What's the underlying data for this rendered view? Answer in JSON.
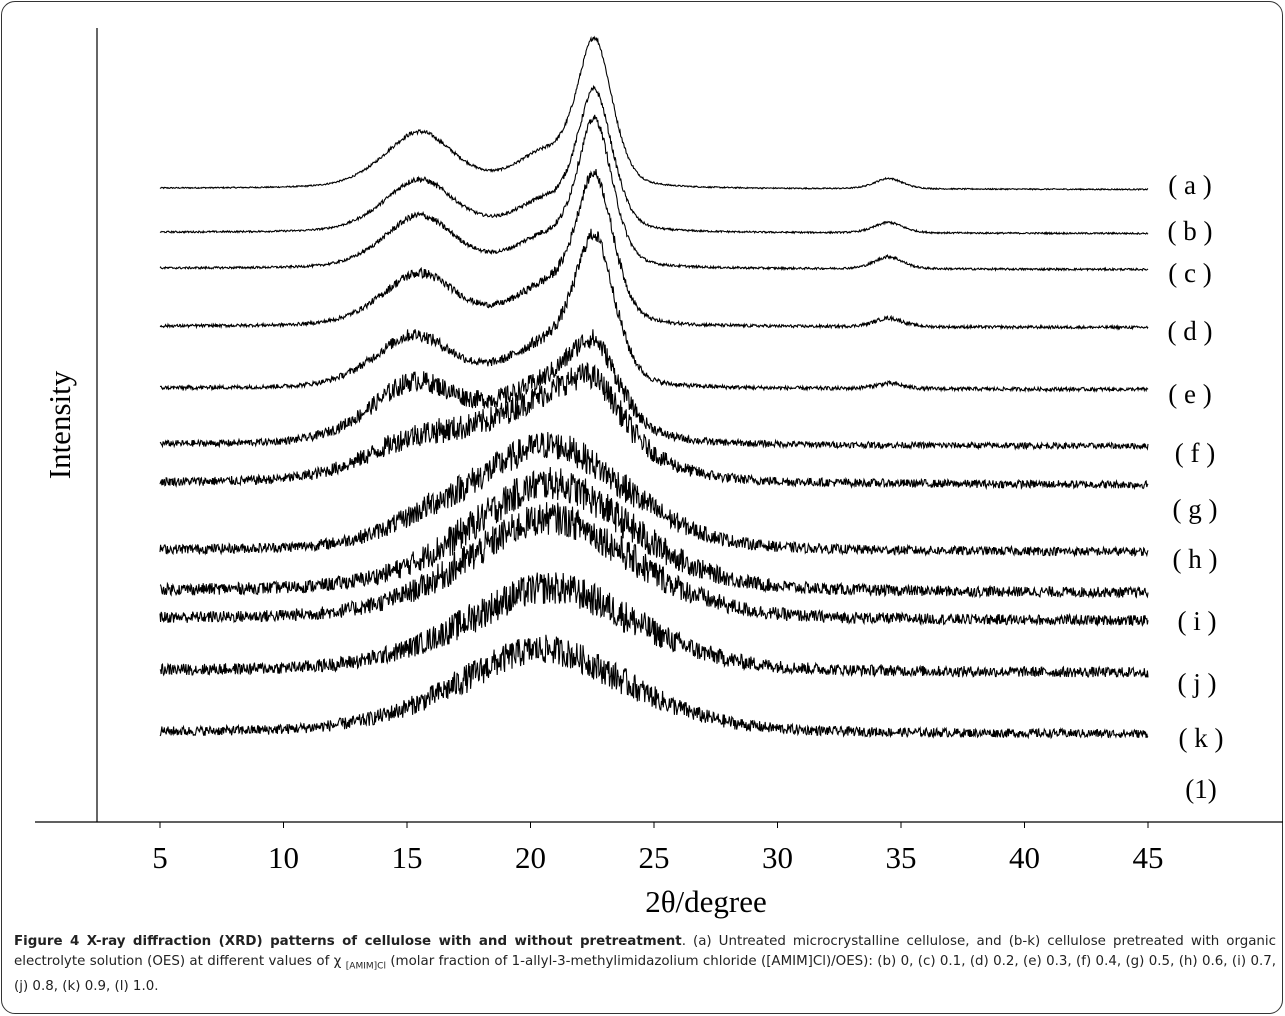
{
  "chart_data": {
    "type": "line",
    "xlabel": "2θ/degree",
    "ylabel": "Intensity",
    "xlim": [
      5,
      45
    ],
    "xticks": [
      5,
      10,
      15,
      20,
      25,
      30,
      35,
      40,
      45
    ],
    "yticks": "none",
    "grid": false,
    "legend": "curve labels at right end of each trace",
    "line_color": "#000000",
    "series": [
      {
        "name": "( a )",
        "peaks": [
          [
            15.5,
            0.32,
            1.5
          ],
          [
            20.5,
            0.18,
            1.2
          ],
          [
            22.6,
            0.82,
            0.75
          ],
          [
            34.5,
            0.06,
            0.6
          ]
        ],
        "baseline": 0.02,
        "noise": 0.006
      },
      {
        "name": "( b )",
        "peaks": [
          [
            15.5,
            0.3,
            1.5
          ],
          [
            20.5,
            0.16,
            1.2
          ],
          [
            22.6,
            0.78,
            0.75
          ],
          [
            34.5,
            0.06,
            0.6
          ]
        ],
        "baseline": 0.02,
        "noise": 0.008
      },
      {
        "name": "( c )",
        "peaks": [
          [
            15.5,
            0.3,
            1.5
          ],
          [
            20.5,
            0.16,
            1.2
          ],
          [
            22.6,
            0.82,
            0.75
          ],
          [
            34.5,
            0.07,
            0.6
          ]
        ],
        "baseline": 0.02,
        "noise": 0.01
      },
      {
        "name": "( d )",
        "peaks": [
          [
            15.5,
            0.3,
            1.6
          ],
          [
            20.5,
            0.2,
            1.3
          ],
          [
            22.6,
            0.82,
            0.8
          ],
          [
            34.5,
            0.05,
            0.6
          ]
        ],
        "baseline": 0.02,
        "noise": 0.014
      },
      {
        "name": "( e )",
        "peaks": [
          [
            15.3,
            0.3,
            1.7
          ],
          [
            20.5,
            0.22,
            1.5
          ],
          [
            22.6,
            0.8,
            0.85
          ],
          [
            34.5,
            0.03,
            0.6
          ]
        ],
        "baseline": 0.02,
        "noise": 0.018
      },
      {
        "name": "( f )",
        "peaks": [
          [
            15.3,
            0.34,
            1.9
          ],
          [
            20.8,
            0.32,
            2.2
          ],
          [
            22.6,
            0.38,
            1.0
          ]
        ],
        "baseline": 0.03,
        "noise": 0.028
      },
      {
        "name": "( g )",
        "peaks": [
          [
            15.3,
            0.2,
            2.2
          ],
          [
            20.8,
            0.45,
            2.8
          ],
          [
            22.6,
            0.25,
            1.1
          ]
        ],
        "baseline": 0.04,
        "noise": 0.035
      },
      {
        "name": "( h )",
        "peaks": [
          [
            20.8,
            0.6,
            3.2
          ],
          [
            16.0,
            0.08,
            2.0
          ]
        ],
        "baseline": 0.03,
        "noise": 0.04
      },
      {
        "name": "( i )",
        "peaks": [
          [
            20.8,
            0.62,
            3.4
          ]
        ],
        "baseline": 0.04,
        "noise": 0.045
      },
      {
        "name": "( j )",
        "peaks": [
          [
            20.8,
            0.58,
            3.5
          ]
        ],
        "baseline": 0.04,
        "noise": 0.045
      },
      {
        "name": "( k )",
        "peaks": [
          [
            20.8,
            0.48,
            3.6
          ]
        ],
        "baseline": 0.04,
        "noise": 0.045
      },
      {
        "name": "(1)",
        "peaks": [
          [
            20.5,
            0.48,
            3.6
          ]
        ],
        "baseline": 0.03,
        "noise": 0.04
      }
    ]
  },
  "caption": {
    "title": "Figure 4 X-ray diffraction (XRD) patterns of cellulose with and without pretreatment",
    "body_1": ". (a) Untreated microcrystalline cellulose, and (b-k) cellulose pretreated with organic electrolyte solution (OES) at different values of ",
    "chi": "χ",
    "chi_sub": "[AMIM]Cl",
    "body_2": " (molar fraction of 1-allyl-3-methylimidazolium chloride ([AMIM]Cl)/OES): (b) 0, (c) 0.1, (d) 0.2, (e) 0.3, (f) 0.4, (g) 0.5, (h) 0.6, (i) 0.7, (j) 0.8, (k) 0.9, (l) 1.0."
  }
}
